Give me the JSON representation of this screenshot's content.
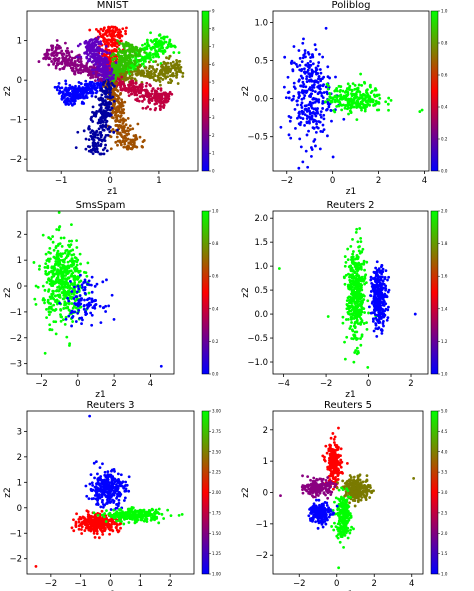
{
  "chart_data": [
    {
      "type": "scatter",
      "title": "MNIST",
      "xlabel": "z1",
      "ylabel": "z2",
      "xlim": [
        -1.7,
        1.8
      ],
      "ylim": [
        -2.3,
        1.75
      ],
      "xticks": [
        -1,
        0,
        1
      ],
      "yticks": [
        -2,
        -1,
        0,
        1
      ],
      "colorbar_ticks": [
        "0",
        "1",
        "2",
        "3",
        "4",
        "5",
        "6",
        "7",
        "8",
        "9"
      ],
      "colorbar_range": [
        0,
        9
      ],
      "series": [
        {
          "color": "#ff0000",
          "arm_angle_deg": 90,
          "arm_length": 1.35
        },
        {
          "color": "#00ff00",
          "arm_angle_deg": 40,
          "arm_length": 1.6
        },
        {
          "color": "#7a7a00",
          "arm_angle_deg": 12,
          "arm_length": 1.5
        },
        {
          "color": "#0000ff",
          "arm_angle_deg": -155,
          "arm_length": 1.1
        },
        {
          "color": "#8a0080",
          "arm_angle_deg": 150,
          "arm_length": 1.5
        },
        {
          "color": "#c00040",
          "arm_angle_deg": -25,
          "arm_length": 1.3
        },
        {
          "color": "#a05000",
          "arm_angle_deg": -78,
          "arm_length": 1.8
        },
        {
          "color": "#30c000",
          "arm_angle_deg": 60,
          "arm_length": 1.0
        },
        {
          "color": "#0000a0",
          "arm_angle_deg": -100,
          "arm_length": 1.9
        },
        {
          "color": "#6000c0",
          "arm_angle_deg": 115,
          "arm_length": 1.1
        }
      ]
    },
    {
      "type": "scatter",
      "title": "Poliblog",
      "xlabel": "z1",
      "ylabel": "z2",
      "xlim": [
        -2.6,
        4.2
      ],
      "ylim": [
        -0.95,
        1.15
      ],
      "xticks": [
        -2,
        0,
        2,
        4
      ],
      "yticks": [
        -0.5,
        0.0,
        0.5,
        1.0
      ],
      "colorbar_ticks": [
        "0.0",
        "0.2",
        "0.4",
        "0.6",
        "0.8",
        "1.0"
      ],
      "colorbar_range": [
        0,
        1
      ],
      "series": [
        {
          "color": "#0000ff",
          "center": [
            -1.0,
            0.05
          ],
          "spread": [
            0.45,
            0.32
          ],
          "count": 320
        },
        {
          "color": "#00ff00",
          "center": [
            1.0,
            0.0
          ],
          "spread": [
            0.6,
            0.09
          ],
          "count": 260
        }
      ],
      "outliers": [
        {
          "x": 3.8,
          "y": -0.17,
          "color": "#00ff00"
        },
        {
          "x": 3.9,
          "y": -0.15,
          "color": "#00ff00"
        },
        {
          "x": -1.3,
          "y": -0.83,
          "color": "#0000ff"
        }
      ]
    },
    {
      "type": "scatter",
      "title": "SmsSpam",
      "xlabel": "z1",
      "ylabel": "z2",
      "xlim": [
        -2.8,
        5.3
      ],
      "ylim": [
        -3.4,
        2.9
      ],
      "xticks": [
        -2,
        0,
        2,
        4
      ],
      "yticks": [
        -3,
        -2,
        -1,
        0,
        1,
        2
      ],
      "colorbar_ticks": [
        "0.0",
        "0.2",
        "0.4",
        "0.6",
        "0.8",
        "1.0"
      ],
      "colorbar_range": [
        0,
        1
      ],
      "series": [
        {
          "color": "#00ff00",
          "center": [
            -0.8,
            0.2
          ],
          "spread": [
            0.55,
            0.8
          ],
          "count": 480
        },
        {
          "color": "#0000ff",
          "center": [
            0.4,
            -0.6
          ],
          "spread": [
            0.5,
            0.4
          ],
          "count": 110
        }
      ],
      "outliers": [
        {
          "x": -2.3,
          "y": 0.0,
          "color": "#00ff00"
        },
        {
          "x": 4.6,
          "y": -3.1,
          "color": "#0000ff"
        },
        {
          "x": -1.8,
          "y": -2.6,
          "color": "#00ff00"
        }
      ]
    },
    {
      "type": "scatter",
      "title": "Reuters 2",
      "xlabel": "z1",
      "ylabel": "z2",
      "xlim": [
        -4.5,
        2.8
      ],
      "ylim": [
        -1.25,
        2.15
      ],
      "xticks": [
        -4,
        -2,
        0,
        2
      ],
      "yticks": [
        -1.0,
        -0.5,
        0.0,
        0.5,
        1.0,
        1.5,
        2.0
      ],
      "colorbar_ticks": [
        "1.0",
        "1.2",
        "1.4",
        "1.6",
        "1.8",
        "2.0"
      ],
      "colorbar_range": [
        1,
        2
      ],
      "series": [
        {
          "color": "#00ff00",
          "center": [
            -0.6,
            0.4
          ],
          "spread": [
            0.22,
            0.5
          ],
          "count": 420
        },
        {
          "color": "#0000ff",
          "center": [
            0.5,
            0.35
          ],
          "spread": [
            0.18,
            0.3
          ],
          "count": 300
        }
      ],
      "outliers": [
        {
          "x": -4.2,
          "y": 0.95,
          "color": "#00ff00"
        },
        {
          "x": 2.2,
          "y": 0.0,
          "color": "#0000ff"
        },
        {
          "x": -1.9,
          "y": -0.05,
          "color": "#00ff00"
        }
      ]
    },
    {
      "type": "scatter",
      "title": "Reuters 3",
      "xlabel": "z1",
      "ylabel": "z2",
      "xlim": [
        -2.8,
        2.8
      ],
      "ylim": [
        -2.6,
        3.8
      ],
      "xticks": [
        -2,
        -1,
        0,
        1,
        2
      ],
      "yticks": [
        -2,
        -1,
        0,
        1,
        2,
        3
      ],
      "colorbar_ticks": [
        "1.00",
        "1.25",
        "1.50",
        "1.75",
        "2.00",
        "2.25",
        "2.50",
        "2.75",
        "3.00"
      ],
      "colorbar_range": [
        1,
        3
      ],
      "series": [
        {
          "color": "#0000ff",
          "center": [
            -0.1,
            0.75
          ],
          "spread": [
            0.3,
            0.35
          ],
          "count": 300
        },
        {
          "color": "#ff0000",
          "center": [
            -0.4,
            -0.6
          ],
          "spread": [
            0.35,
            0.17
          ],
          "count": 340
        },
        {
          "color": "#00ff00",
          "center": [
            0.8,
            -0.3
          ],
          "spread": [
            0.45,
            0.12
          ],
          "count": 260
        }
      ],
      "outliers": [
        {
          "x": -0.7,
          "y": 3.6,
          "color": "#0000ff"
        },
        {
          "x": -2.5,
          "y": -2.3,
          "color": "#ff0000"
        },
        {
          "x": 2.3,
          "y": -0.3,
          "color": "#00ff00"
        }
      ]
    },
    {
      "type": "scatter",
      "title": "Reuters 5",
      "xlabel": "z1",
      "ylabel": "z2",
      "xlim": [
        -3.4,
        4.6
      ],
      "ylim": [
        -2.6,
        2.6
      ],
      "xticks": [
        -2,
        0,
        2,
        4
      ],
      "yticks": [
        -2,
        -1,
        0,
        1,
        2
      ],
      "colorbar_ticks": [
        "1.0",
        "1.5",
        "2.0",
        "2.5",
        "3.0",
        "3.5",
        "4.0",
        "4.5",
        "5.0"
      ],
      "colorbar_range": [
        1,
        5
      ],
      "series": [
        {
          "color": "#ff0000",
          "center": [
            -0.15,
            0.9
          ],
          "spread": [
            0.2,
            0.35
          ],
          "count": 220
        },
        {
          "color": "#7a7a00",
          "center": [
            1.1,
            0.1
          ],
          "spread": [
            0.35,
            0.18
          ],
          "count": 240
        },
        {
          "color": "#00ff00",
          "center": [
            0.35,
            -0.75
          ],
          "spread": [
            0.2,
            0.35
          ],
          "count": 220
        },
        {
          "color": "#0000ff",
          "center": [
            -0.9,
            -0.65
          ],
          "spread": [
            0.28,
            0.18
          ],
          "count": 200
        },
        {
          "color": "#8a0080",
          "center": [
            -1.0,
            0.15
          ],
          "spread": [
            0.35,
            0.12
          ],
          "count": 200
        }
      ],
      "outliers": [
        {
          "x": 4.1,
          "y": 0.45,
          "color": "#7a7a00"
        },
        {
          "x": 0.1,
          "y": -2.4,
          "color": "#00ff00"
        },
        {
          "x": -3.0,
          "y": -0.1,
          "color": "#8a0080"
        }
      ]
    }
  ]
}
